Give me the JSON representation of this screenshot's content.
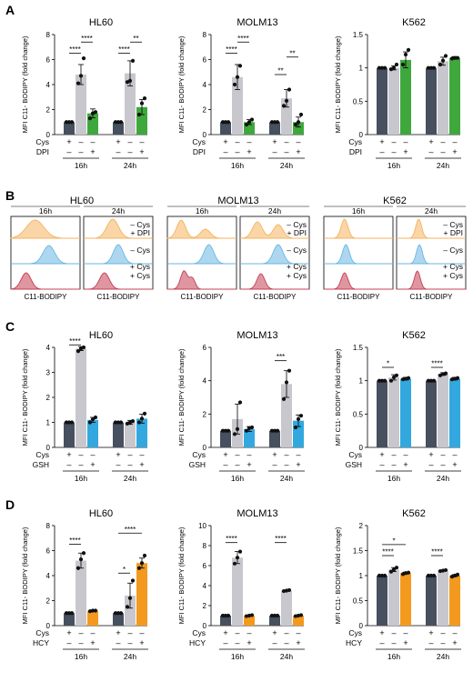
{
  "colors": {
    "cys_plus": "#46505e",
    "cys_minus": "#c8c7cd",
    "dpi": "#3fa83d",
    "gsh": "#32a8df",
    "hcy": "#f39a1e",
    "flow_orange": "#f6b25f",
    "flow_blue": "#69b7e3",
    "flow_red": "#c43f53"
  },
  "panels": {
    "A": "A",
    "B": "B",
    "C": "C",
    "D": "D"
  },
  "common": {
    "ylabel": "MFI C11- BODIPY (fold change)",
    "time_labels": [
      "16h",
      "24h"
    ],
    "plus": "+",
    "minus": "–",
    "cys_label": "Cys",
    "flow_xlabel": "C11-BODIPY"
  },
  "flow_B": {
    "cells": [
      "HL60",
      "MOLM13",
      "K562"
    ],
    "legend": [
      "– Cys",
      "+ DPI",
      "– Cys",
      "+ Cys",
      "+ Cys"
    ]
  },
  "chart_data": [
    {
      "panel": "A",
      "type": "bar",
      "title": "HL60",
      "treatment": "DPI",
      "ylim": [
        0,
        8
      ],
      "yticks": [
        0,
        2,
        4,
        6,
        8
      ],
      "groups": [
        {
          "time": "16h",
          "values": [
            1.0,
            4.8,
            1.7
          ],
          "points": [
            [
              1,
              1,
              1
            ],
            [
              4.1,
              4.7,
              6.1
            ],
            [
              1.3,
              1.7,
              1.8
            ]
          ],
          "sd": [
            0,
            0.8,
            0.35
          ]
        },
        {
          "time": "24h",
          "values": [
            1.0,
            4.9,
            2.2
          ],
          "points": [
            [
              1,
              1,
              1
            ],
            [
              4.2,
              4.3,
              5.9
            ],
            [
              1.6,
              2.5,
              2.9
            ]
          ],
          "sd": [
            0,
            1.0,
            0.6
          ]
        }
      ],
      "sig": [
        {
          "from": [
            0,
            0
          ],
          "to": [
            0,
            1
          ],
          "label": "****",
          "y": 6.5
        },
        {
          "from": [
            0,
            1
          ],
          "to": [
            0,
            2
          ],
          "label": "****",
          "y": 7.4
        },
        {
          "from": [
            1,
            0
          ],
          "to": [
            1,
            1
          ],
          "label": "****",
          "y": 6.5
        },
        {
          "from": [
            1,
            1
          ],
          "to": [
            1,
            2
          ],
          "label": "**",
          "y": 7.4
        }
      ]
    },
    {
      "panel": "A",
      "type": "bar",
      "title": "MOLM13",
      "treatment": "DPI",
      "ylim": [
        0,
        8
      ],
      "yticks": [
        0,
        2,
        4,
        6,
        8
      ],
      "groups": [
        {
          "time": "16h",
          "values": [
            1.0,
            4.6,
            1.0
          ],
          "points": [
            [
              1,
              1,
              1
            ],
            [
              4.0,
              4.6,
              5.5
            ],
            [
              0.8,
              1.0,
              1.2
            ]
          ],
          "sd": [
            0,
            1.0,
            0.2
          ]
        },
        {
          "time": "24h",
          "values": [
            1.0,
            2.9,
            1.0
          ],
          "points": [
            [
              1,
              1,
              1
            ],
            [
              2.3,
              2.7,
              3.6
            ],
            [
              0.8,
              1.0,
              1.6
            ]
          ],
          "sd": [
            0,
            0.7,
            0.4
          ]
        }
      ],
      "sig": [
        {
          "from": [
            0,
            0
          ],
          "to": [
            0,
            1
          ],
          "label": "****",
          "y": 6.5
        },
        {
          "from": [
            0,
            1
          ],
          "to": [
            0,
            2
          ],
          "label": "****",
          "y": 7.4
        },
        {
          "from": [
            1,
            0
          ],
          "to": [
            1,
            1
          ],
          "label": "**",
          "y": 4.8
        },
        {
          "from": [
            1,
            1
          ],
          "to": [
            1,
            2
          ],
          "label": "**",
          "y": 6.2
        }
      ]
    },
    {
      "panel": "A",
      "type": "bar",
      "title": "K562",
      "treatment": "DPI",
      "ylim": [
        0,
        1.5
      ],
      "yticks": [
        0.0,
        0.5,
        1.0,
        1.5
      ],
      "groups": [
        {
          "time": "16h",
          "values": [
            1.0,
            1.0,
            1.12
          ],
          "points": [
            [
              1,
              1,
              1
            ],
            [
              0.98,
              1.0,
              1.05
            ],
            [
              1.05,
              1.2,
              1.27
            ]
          ],
          "sd": [
            0,
            0.03,
            0.12
          ]
        },
        {
          "time": "24h",
          "values": [
            1.0,
            1.1,
            1.15
          ],
          "points": [
            [
              1,
              1,
              1
            ],
            [
              1.05,
              1.11,
              1.18
            ],
            [
              1.14,
              1.15,
              1.15
            ]
          ],
          "sd": [
            0,
            0.06,
            0.02
          ]
        }
      ],
      "sig": []
    },
    {
      "panel": "C",
      "type": "bar",
      "title": "HL60",
      "treatment": "GSH",
      "ylim": [
        0,
        4
      ],
      "yticks": [
        0,
        1,
        2,
        3,
        4
      ],
      "groups": [
        {
          "time": "16h",
          "values": [
            1.0,
            3.95,
            1.1
          ],
          "points": [
            [
              1,
              1,
              1
            ],
            [
              3.85,
              3.95,
              4.0
            ],
            [
              1.0,
              1.12,
              1.2
            ]
          ],
          "sd": [
            0,
            0.08,
            0.1
          ]
        },
        {
          "time": "24h",
          "values": [
            1.0,
            1.0,
            1.15
          ],
          "points": [
            [
              1,
              1,
              1
            ],
            [
              0.95,
              1.0,
              1.05
            ],
            [
              1.0,
              1.15,
              1.35
            ]
          ],
          "sd": [
            0,
            0.08,
            0.18
          ]
        }
      ],
      "sig": [
        {
          "from": [
            0,
            0
          ],
          "to": [
            0,
            1
          ],
          "label": "****",
          "y": 4.1
        }
      ]
    },
    {
      "panel": "C",
      "type": "bar",
      "title": "MOLM13",
      "treatment": "GSH",
      "ylim": [
        0,
        6
      ],
      "yticks": [
        0,
        2,
        4,
        6
      ],
      "groups": [
        {
          "time": "16h",
          "values": [
            1.0,
            1.7,
            1.1
          ],
          "points": [
            [
              1,
              1,
              1
            ],
            [
              0.8,
              1.1,
              2.7
            ],
            [
              1.0,
              1.15,
              1.2
            ]
          ],
          "sd": [
            0,
            0.9,
            0.15
          ]
        },
        {
          "time": "24h",
          "values": [
            1.0,
            3.8,
            1.6
          ],
          "points": [
            [
              1,
              1,
              1
            ],
            [
              2.9,
              3.9,
              4.6
            ],
            [
              1.2,
              1.7,
              1.9
            ]
          ],
          "sd": [
            0,
            0.8,
            0.35
          ]
        }
      ],
      "sig": [
        {
          "from": [
            1,
            0
          ],
          "to": [
            1,
            1
          ],
          "label": "***",
          "y": 5.2
        }
      ]
    },
    {
      "panel": "C",
      "type": "bar",
      "title": "K562",
      "treatment": "GSH",
      "ylim": [
        0,
        1.5
      ],
      "yticks": [
        0.0,
        0.5,
        1.0,
        1.5
      ],
      "groups": [
        {
          "time": "16h",
          "values": [
            1.0,
            1.05,
            1.03
          ],
          "points": [
            [
              1,
              1,
              1
            ],
            [
              1.0,
              1.05,
              1.08
            ],
            [
              1.02,
              1.03,
              1.04
            ]
          ],
          "sd": [
            0,
            0.04,
            0.02
          ]
        },
        {
          "time": "24h",
          "values": [
            1.0,
            1.1,
            1.03
          ],
          "points": [
            [
              1,
              1,
              1
            ],
            [
              1.08,
              1.1,
              1.11
            ],
            [
              1.02,
              1.03,
              1.04
            ]
          ],
          "sd": [
            0,
            0.02,
            0.02
          ]
        }
      ],
      "sig": [
        {
          "from": [
            0,
            0
          ],
          "to": [
            0,
            1
          ],
          "label": "*",
          "y": 1.2
        },
        {
          "from": [
            1,
            0
          ],
          "to": [
            1,
            1
          ],
          "label": "****",
          "y": 1.2
        }
      ]
    },
    {
      "panel": "D",
      "type": "bar",
      "title": "HL60",
      "treatment": "HCY",
      "ylim": [
        0,
        8
      ],
      "yticks": [
        0,
        2,
        4,
        6,
        8
      ],
      "groups": [
        {
          "time": "16h",
          "values": [
            1.0,
            5.2,
            1.2
          ],
          "points": [
            [
              1,
              1,
              1
            ],
            [
              4.6,
              5.3,
              5.8
            ],
            [
              1.15,
              1.2,
              1.2
            ]
          ],
          "sd": [
            0,
            0.6,
            0.05
          ]
        },
        {
          "time": "24h",
          "values": [
            1.0,
            2.4,
            5.0
          ],
          "points": [
            [
              1,
              1,
              1
            ],
            [
              1.5,
              2.2,
              3.6
            ],
            [
              4.6,
              5.0,
              5.6
            ]
          ],
          "sd": [
            0,
            1.0,
            0.4
          ]
        }
      ],
      "sig": [
        {
          "from": [
            0,
            0
          ],
          "to": [
            0,
            1
          ],
          "label": "****",
          "y": 6.5
        },
        {
          "from": [
            1,
            0
          ],
          "to": [
            1,
            1
          ],
          "label": "*",
          "y": 4.2
        },
        {
          "from": [
            1,
            0
          ],
          "to": [
            1,
            2
          ],
          "label": "****",
          "y": 7.4
        }
      ]
    },
    {
      "panel": "D",
      "type": "bar",
      "title": "MOLM13",
      "treatment": "HCY",
      "ylim": [
        0,
        10
      ],
      "yticks": [
        0,
        2,
        4,
        6,
        8,
        10
      ],
      "groups": [
        {
          "time": "16h",
          "values": [
            1.0,
            6.8,
            1.0
          ],
          "points": [
            [
              1,
              1,
              1
            ],
            [
              6.2,
              6.8,
              7.4
            ],
            [
              0.95,
              1.0,
              1.05
            ]
          ],
          "sd": [
            0,
            0.6,
            0.05
          ]
        },
        {
          "time": "24h",
          "values": [
            1.0,
            3.5,
            1.0
          ],
          "points": [
            [
              1,
              1,
              1
            ],
            [
              3.45,
              3.5,
              3.55
            ],
            [
              0.95,
              1.0,
              1.05
            ]
          ],
          "sd": [
            0,
            0.05,
            0.05
          ]
        }
      ],
      "sig": [
        {
          "from": [
            0,
            0
          ],
          "to": [
            0,
            1
          ],
          "label": "****",
          "y": 8.3
        },
        {
          "from": [
            1,
            0
          ],
          "to": [
            1,
            1
          ],
          "label": "****",
          "y": 8.3
        }
      ]
    },
    {
      "panel": "D",
      "type": "bar",
      "title": "K562",
      "treatment": "HCY",
      "ylim": [
        0,
        2.0
      ],
      "yticks": [
        0.0,
        0.5,
        1.0,
        1.5,
        2.0
      ],
      "groups": [
        {
          "time": "16h",
          "values": [
            1.0,
            1.12,
            1.05
          ],
          "points": [
            [
              1,
              1,
              1
            ],
            [
              1.08,
              1.12,
              1.16
            ],
            [
              1.03,
              1.05,
              1.06
            ]
          ],
          "sd": [
            0,
            0.04,
            0.02
          ]
        },
        {
          "time": "24h",
          "values": [
            1.0,
            1.1,
            1.0
          ],
          "points": [
            [
              1,
              1,
              1
            ],
            [
              1.09,
              1.1,
              1.11
            ],
            [
              0.98,
              1.0,
              1.02
            ]
          ],
          "sd": [
            0,
            0.01,
            0.02
          ]
        }
      ],
      "sig": [
        {
          "from": [
            0,
            0
          ],
          "to": [
            0,
            1
          ],
          "label": "****",
          "y": 1.4
        },
        {
          "from": [
            0,
            0
          ],
          "to": [
            0,
            2
          ],
          "label": "*",
          "y": 1.62
        },
        {
          "from": [
            1,
            0
          ],
          "to": [
            1,
            1
          ],
          "label": "****",
          "y": 1.4
        }
      ]
    }
  ]
}
